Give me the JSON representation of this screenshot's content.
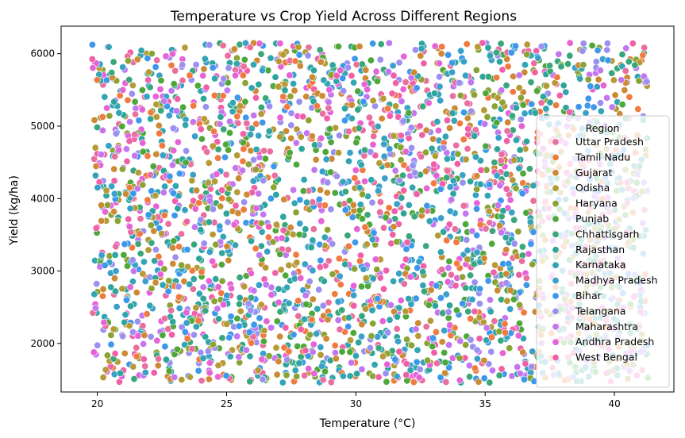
{
  "chart_data": {
    "type": "scatter",
    "title": "Temperature vs Crop Yield Across Different Regions",
    "xlabel": "Temperature (°C)",
    "ylabel": "Yield (kg/ha)",
    "xlim": [
      18.6,
      42.3
    ],
    "ylim": [
      1330,
      6380
    ],
    "x_ticks": [
      20,
      25,
      30,
      35,
      40
    ],
    "y_ticks": [
      2000,
      3000,
      4000,
      5000,
      6000
    ],
    "grid": false,
    "legend": {
      "title": "Region",
      "placement": "right",
      "entries": [
        {
          "name": "Uttar Pradesh",
          "color": "#e96f9f"
        },
        {
          "name": "Tamil Nadu",
          "color": "#f07a3f"
        },
        {
          "name": "Gujarat",
          "color": "#cd8a35"
        },
        {
          "name": "Odisha",
          "color": "#b69a36"
        },
        {
          "name": "Haryana",
          "color": "#8aa434"
        },
        {
          "name": "Punjab",
          "color": "#4ea839"
        },
        {
          "name": "Chhattisgarh",
          "color": "#39a77a"
        },
        {
          "name": "Rajasthan",
          "color": "#2ea59b"
        },
        {
          "name": "Karnataka",
          "color": "#33a4b2"
        },
        {
          "name": "Madhya Pradesh",
          "color": "#39a1c9"
        },
        {
          "name": "Bihar",
          "color": "#3d97ea"
        },
        {
          "name": "Telangana",
          "color": "#9b8ff0"
        },
        {
          "name": "Maharashtra",
          "color": "#c376ef"
        },
        {
          "name": "Andhra Pradesh",
          "color": "#e662d7"
        },
        {
          "name": "West Bengal",
          "color": "#f060a8"
        }
      ]
    },
    "points_summary": {
      "x_range": [
        19.8,
        41.3
      ],
      "y_range": [
        1460,
        6150
      ],
      "distribution": "dense, roughly uniform cloud of points from all regions across the full temperature and yield ranges"
    }
  }
}
